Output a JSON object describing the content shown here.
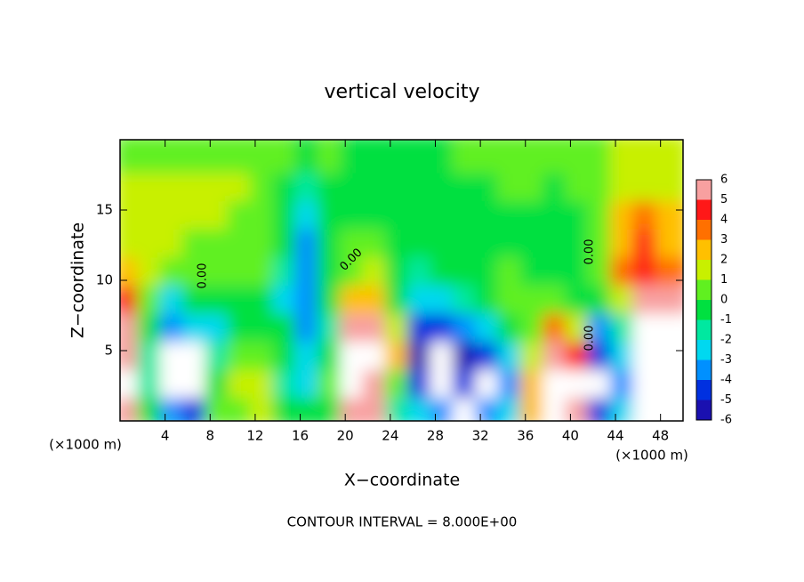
{
  "chart_data": {
    "type": "heatmap",
    "title": "vertical velocity",
    "x_label": "X−coordinate",
    "y_label": "Z−coordinate",
    "x_unit": "(×1000 m)",
    "x_unit_right": "(×1000 m)",
    "footer": "CONTOUR INTERVAL = 8.000E+00",
    "contour_labels": [
      "0.00",
      "0.00",
      "0.00",
      "0.00"
    ],
    "x": [
      1,
      3,
      5,
      7,
      9,
      11,
      13,
      15,
      17,
      19,
      21,
      23,
      25,
      27,
      29,
      31,
      33,
      35,
      37,
      39,
      41,
      43,
      45,
      47,
      49
    ],
    "y": [
      1,
      3,
      5,
      7,
      9,
      11,
      13,
      15,
      17,
      19
    ],
    "z": [
      [
        5,
        7,
        6,
        5,
        4,
        2,
        1,
        1,
        1,
        0.5
      ],
      [
        -1,
        -2,
        -2,
        -1,
        0.5,
        1,
        1.5,
        1.5,
        1,
        0.5
      ],
      [
        -4,
        -7,
        -7,
        -4,
        -3,
        0,
        1,
        1.5,
        1,
        0.5
      ],
      [
        -5,
        -7,
        -7,
        -3,
        -1,
        0.5,
        0.5,
        1,
        1,
        0.5
      ],
      [
        0,
        -1,
        -2,
        -3,
        -1,
        0.5,
        0.5,
        1,
        1,
        0.5
      ],
      [
        0.5,
        1,
        0.5,
        -1,
        -0.5,
        0.5,
        0.5,
        0.5,
        1,
        0.5
      ],
      [
        1,
        1,
        0.5,
        -0.5,
        -0.5,
        0,
        0.5,
        0.5,
        0.5,
        0.5
      ],
      [
        -1,
        -2,
        -1,
        -1,
        -3,
        -2,
        -1,
        -1,
        -0.5,
        0
      ],
      [
        -1,
        -3,
        -3,
        -4,
        -4,
        -4,
        -4,
        -3,
        -2,
        -1
      ],
      [
        -0.5,
        0,
        -1,
        -2,
        -1,
        -0.5,
        -0.5,
        -1,
        -1,
        0
      ],
      [
        5,
        7,
        7,
        5,
        2,
        0.5,
        0,
        -0.5,
        -0.5,
        -0.5
      ],
      [
        5,
        6,
        7,
        5,
        2,
        1,
        0,
        -1,
        -1,
        -0.5
      ],
      [
        -2,
        0,
        2,
        1,
        -1,
        -1,
        -1,
        -0.5,
        -0.5,
        -0.5
      ],
      [
        -3,
        -5,
        -6,
        -5,
        -3,
        -2,
        -1,
        -1,
        -0.5,
        -0.5
      ],
      [
        -4,
        -7,
        -7,
        -5,
        -3,
        -1,
        -1,
        -0.5,
        -0.5,
        -0.5
      ],
      [
        -7,
        -5,
        -6,
        -4,
        -2,
        -1,
        -1,
        -0.5,
        -0.5,
        0
      ],
      [
        -4,
        -7,
        -5,
        -3,
        -1,
        -0.5,
        -0.5,
        -0.5,
        -0.5,
        0
      ],
      [
        -3,
        -4,
        -3,
        -1,
        0,
        0,
        -0.5,
        -0.5,
        0,
        0
      ],
      [
        2,
        2,
        1,
        0,
        0,
        -0.5,
        -1,
        -0.5,
        0,
        0
      ],
      [
        7,
        7,
        5,
        3,
        0.5,
        -0.5,
        -1,
        -1,
        -0.5,
        0
      ],
      [
        6,
        7,
        4,
        1,
        -1,
        -1,
        -1,
        -0.5,
        0,
        0
      ],
      [
        -5,
        -7,
        -5,
        -4,
        -1,
        0,
        0,
        0.5,
        0.5,
        0.5
      ],
      [
        -3,
        -4,
        -3,
        -2,
        1,
        3,
        2,
        2,
        1,
        1
      ],
      [
        7,
        7,
        7,
        7,
        6,
        4,
        4,
        3,
        1.5,
        1
      ],
      [
        7,
        7,
        7,
        7,
        6,
        3,
        2,
        2,
        1,
        1
      ]
    ],
    "xlim": [
      0,
      50
    ],
    "ylim": [
      0,
      20
    ],
    "xticks": [
      4,
      8,
      12,
      16,
      20,
      24,
      28,
      32,
      36,
      40,
      44,
      48
    ],
    "yticks": [
      5,
      10,
      15
    ],
    "clim": [
      -6,
      6
    ],
    "cticks": [
      -6,
      -5,
      -4,
      -3,
      -2,
      -1,
      0,
      1,
      2,
      3,
      4,
      5,
      6
    ],
    "colors": [
      "#6a00a8",
      "#1a10b0",
      "#0030e0",
      "#0090ff",
      "#00d8f0",
      "#00e8a0",
      "#00e040",
      "#60f020",
      "#c8f000",
      "#ffc000",
      "#ff7000",
      "#ff1818",
      "#f8a0a0"
    ],
    "over_color": "#ffffff",
    "under_color": "#ffffff"
  }
}
